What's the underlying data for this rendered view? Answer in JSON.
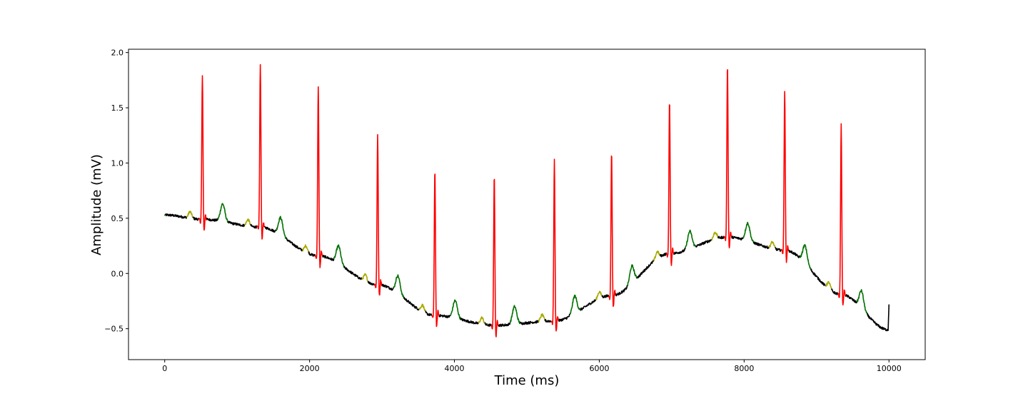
{
  "chart_data": {
    "type": "line",
    "title": "",
    "xlabel": "Time (ms)",
    "ylabel": "Amplitude (mV)",
    "xlim": [
      -500,
      10500
    ],
    "ylim": [
      -0.78,
      2.03
    ],
    "x_ticks": [
      0,
      2000,
      4000,
      6000,
      8000,
      10000
    ],
    "y_ticks": [
      -0.5,
      0.0,
      0.5,
      1.0,
      1.5,
      2.0
    ],
    "x_tick_labels": [
      "0",
      "2000",
      "4000",
      "6000",
      "8000",
      "10000"
    ],
    "y_tick_labels": [
      "−0.5",
      "0.0",
      "0.5",
      "1.0",
      "1.5",
      "2.0"
    ],
    "grid": false,
    "legend": "none",
    "series_colors": {
      "baseline": "#000000",
      "p_wave": "#aaaa00",
      "qrs_complex": "#ff0000",
      "t_wave": "#007000"
    },
    "beats": [
      {
        "r_time": 520,
        "r_peak": 1.79,
        "baseline": 0.49
      },
      {
        "r_time": 1320,
        "r_peak": 1.89,
        "baseline": 0.42
      },
      {
        "r_time": 2120,
        "r_peak": 1.7,
        "baseline": 0.16
      },
      {
        "r_time": 2940,
        "r_peak": 1.25,
        "baseline": -0.1
      },
      {
        "r_time": 3730,
        "r_peak": 0.94,
        "baseline": -0.38
      },
      {
        "r_time": 4550,
        "r_peak": 0.89,
        "baseline": -0.47
      },
      {
        "r_time": 5380,
        "r_peak": 1.03,
        "baseline": -0.43
      },
      {
        "r_time": 6170,
        "r_peak": 1.1,
        "baseline": -0.2
      },
      {
        "r_time": 6970,
        "r_peak": 1.57,
        "baseline": 0.18
      },
      {
        "r_time": 7770,
        "r_peak": 1.89,
        "baseline": 0.33
      },
      {
        "r_time": 8560,
        "r_peak": 1.66,
        "baseline": 0.21
      },
      {
        "r_time": 9340,
        "r_peak": 1.35,
        "baseline": -0.19
      }
    ],
    "end_point": {
      "x": 10000,
      "y": -0.28
    }
  }
}
